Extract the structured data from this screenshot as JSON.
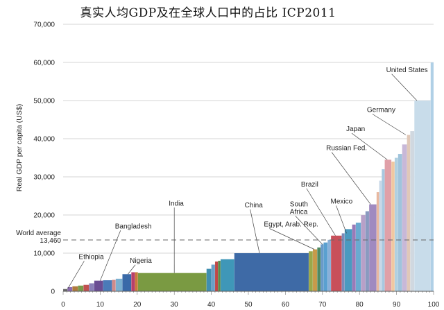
{
  "chart_data": {
    "type": "bar",
    "title": "真实人均GDP及在全球人口中的占比 ICP2011",
    "ylabel": "Real GDP per capita (US$)",
    "xlabel": "",
    "xlim": [
      0,
      100
    ],
    "ylim": [
      0,
      70000
    ],
    "x_ticks": [
      "0",
      "10",
      "20",
      "30",
      "40",
      "50",
      "60",
      "70",
      "80",
      "90",
      "100"
    ],
    "y_ticks": [
      "0",
      "10,000",
      "20,000",
      "30,000",
      "40,000",
      "50,000",
      "60,000",
      "70,000"
    ],
    "grid": true,
    "reference_line": {
      "label": "World average",
      "value_label": "13,460",
      "value": 13460
    },
    "segments": [
      {
        "x0": 0,
        "x1": 1.2,
        "value": 600,
        "color": "#6b6b6b"
      },
      {
        "x0": 1.2,
        "x1": 2.5,
        "value": 1100,
        "color": "#8c6bb1"
      },
      {
        "x0": 2.5,
        "x1": 4.0,
        "value": 1300,
        "color": "#b07a3c"
      },
      {
        "x0": 4.0,
        "x1": 5.5,
        "value": 1500,
        "color": "#7a9a4a"
      },
      {
        "x0": 5.5,
        "x1": 7.0,
        "value": 1700,
        "color": "#c05050"
      },
      {
        "x0": 7.0,
        "x1": 8.4,
        "value": 2100,
        "color": "#8a7fb8"
      },
      {
        "x0": 8.4,
        "x1": 10.8,
        "value": 2800,
        "color": "#6a4c93"
      },
      {
        "x0": 10.8,
        "x1": 13.2,
        "value": 2900,
        "color": "#4a7ab8"
      },
      {
        "x0": 13.2,
        "x1": 14.2,
        "value": 3000,
        "color": "#d08a8a"
      },
      {
        "x0": 14.2,
        "x1": 16.0,
        "value": 3300,
        "color": "#7bb0d0"
      },
      {
        "x0": 16.0,
        "x1": 18.4,
        "value": 4500,
        "color": "#3a6aa8"
      },
      {
        "x0": 18.4,
        "x1": 19.4,
        "value": 5000,
        "color": "#b8406a"
      },
      {
        "x0": 19.4,
        "x1": 20.2,
        "value": 5000,
        "color": "#c87a3a"
      },
      {
        "x0": 20.2,
        "x1": 38.7,
        "value": 4800,
        "color": "#7a9a42"
      },
      {
        "x0": 38.7,
        "x1": 40.0,
        "value": 5900,
        "color": "#3f8fb0"
      },
      {
        "x0": 40.0,
        "x1": 41.0,
        "value": 7000,
        "color": "#6aa0c8"
      },
      {
        "x0": 41.0,
        "x1": 41.8,
        "value": 7800,
        "color": "#c04848"
      },
      {
        "x0": 41.8,
        "x1": 42.5,
        "value": 8000,
        "color": "#5a8a4a"
      },
      {
        "x0": 42.5,
        "x1": 46.2,
        "value": 8400,
        "color": "#3f97b8"
      },
      {
        "x0": 46.2,
        "x1": 66.3,
        "value": 10000,
        "color": "#3e6aa6"
      },
      {
        "x0": 66.3,
        "x1": 67.4,
        "value": 10500,
        "color": "#9aa84a"
      },
      {
        "x0": 67.4,
        "x1": 68.6,
        "value": 11000,
        "color": "#c89a4a"
      },
      {
        "x0": 68.6,
        "x1": 69.5,
        "value": 11500,
        "color": "#4f8a62"
      },
      {
        "x0": 69.5,
        "x1": 70.3,
        "value": 12300,
        "color": "#6a9ac8"
      },
      {
        "x0": 70.3,
        "x1": 71.4,
        "value": 12800,
        "color": "#5aa0d0"
      },
      {
        "x0": 71.4,
        "x1": 72.3,
        "value": 13500,
        "color": "#8ab0d8"
      },
      {
        "x0": 72.3,
        "x1": 75.2,
        "value": 14600,
        "color": "#c8505a"
      },
      {
        "x0": 75.2,
        "x1": 76.0,
        "value": 15200,
        "color": "#7a8ab8"
      },
      {
        "x0": 76.0,
        "x1": 78.0,
        "value": 16300,
        "color": "#4a9ac0"
      },
      {
        "x0": 78.0,
        "x1": 79.0,
        "value": 17500,
        "color": "#9a7ab8"
      },
      {
        "x0": 79.0,
        "x1": 80.4,
        "value": 18000,
        "color": "#6aaad0"
      },
      {
        "x0": 80.4,
        "x1": 81.6,
        "value": 20000,
        "color": "#b8a0c8"
      },
      {
        "x0": 81.6,
        "x1": 82.6,
        "value": 21000,
        "color": "#8a9ac0"
      },
      {
        "x0": 82.6,
        "x1": 84.6,
        "value": 22800,
        "color": "#a08ac0"
      },
      {
        "x0": 84.6,
        "x1": 85.3,
        "value": 26000,
        "color": "#e8b8a0"
      },
      {
        "x0": 85.3,
        "x1": 86.0,
        "value": 29000,
        "color": "#c8d8e8"
      },
      {
        "x0": 86.0,
        "x1": 86.8,
        "value": 32000,
        "color": "#a8c8e0"
      },
      {
        "x0": 86.8,
        "x1": 88.6,
        "value": 34500,
        "color": "#e0a0a8"
      },
      {
        "x0": 88.6,
        "x1": 89.5,
        "value": 34000,
        "color": "#f0c8a0"
      },
      {
        "x0": 89.5,
        "x1": 90.4,
        "value": 35000,
        "color": "#b0d0e0"
      },
      {
        "x0": 90.4,
        "x1": 91.5,
        "value": 36000,
        "color": "#a0c4dc"
      },
      {
        "x0": 91.5,
        "x1": 92.8,
        "value": 38500,
        "color": "#c8b8d8"
      },
      {
        "x0": 92.8,
        "x1": 93.7,
        "value": 41000,
        "color": "#e0c8b8"
      },
      {
        "x0": 93.7,
        "x1": 94.8,
        "value": 42000,
        "color": "#d0d8e0"
      },
      {
        "x0": 94.8,
        "x1": 99.2,
        "value": 50000,
        "color": "#c8dcea"
      },
      {
        "x0": 99.2,
        "x1": 100,
        "value": 60000,
        "color": "#b0d0e6"
      }
    ],
    "annotations": [
      {
        "text": "Ethiopia",
        "x": 1.2,
        "value": 600,
        "lx": 4.2,
        "ly": 8500
      },
      {
        "text": "Bangladesh",
        "x": 10.0,
        "value": 2800,
        "lx": 14.0,
        "ly": 16500
      },
      {
        "text": "Nigeria",
        "x": 17.5,
        "value": 4500,
        "lx": 18.0,
        "ly": 7500
      },
      {
        "text": "India",
        "x": 30.0,
        "value": 4800,
        "lx": 28.5,
        "ly": 22500
      },
      {
        "text": "China",
        "x": 53.0,
        "value": 10000,
        "lx": 49.0,
        "ly": 22000
      },
      {
        "text": "Egypt, Arab. Rep.",
        "x": 67.8,
        "value": 11000,
        "lx": 54.2,
        "ly": 17000
      },
      {
        "text": "South\nAfrica",
        "x": 70.0,
        "value": 12300,
        "lx": 61.2,
        "ly": 22300
      },
      {
        "text": "Brazil",
        "x": 73.5,
        "value": 14600,
        "lx": 64.2,
        "ly": 27500
      },
      {
        "text": "Mexico",
        "x": 76.5,
        "value": 15200,
        "lx": 72.2,
        "ly": 23000
      },
      {
        "text": "Russian Fed.",
        "x": 83.0,
        "value": 22800,
        "lx": 71.0,
        "ly": 37000
      },
      {
        "text": "Japan",
        "x": 87.5,
        "value": 34500,
        "lx": 76.4,
        "ly": 42000
      },
      {
        "text": "Germany",
        "x": 92.5,
        "value": 41000,
        "lx": 82.0,
        "ly": 47000
      },
      {
        "text": "United States",
        "x": 95.5,
        "value": 50000,
        "lx": 87.2,
        "ly": 57500
      }
    ]
  }
}
